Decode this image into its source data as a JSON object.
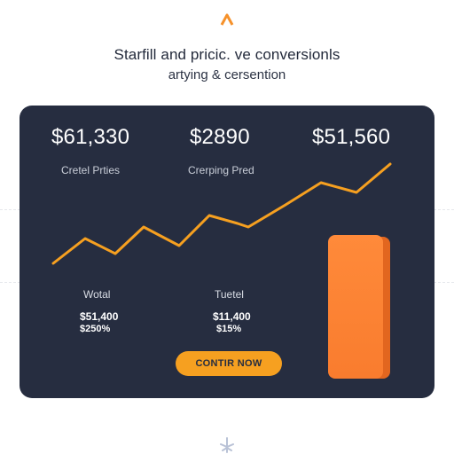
{
  "header": {
    "headline": "Starfill and pricic. ve conversionls",
    "subline": "artying & cersention"
  },
  "card": {
    "stats": [
      {
        "value": "$61,330",
        "label": "Cretel Prties"
      },
      {
        "value": "$2890",
        "label": "Crerping Pred"
      },
      {
        "value": "$51,560"
      }
    ],
    "bottom": [
      {
        "label": "Wotal",
        "value1": "$51,400",
        "value2": "$250%"
      },
      {
        "label": "Tuetel",
        "value1": "$11,400",
        "value2": "$15%"
      }
    ],
    "cta_label": "CONTIR NOW"
  },
  "colors": {
    "card_background": "#262d40",
    "accent_line": "#f6a020",
    "accent_bar": "#f97c2e",
    "button": "#f6a020"
  },
  "icons": [
    "logo-caret-icon",
    "bottom-ornament-icon"
  ]
}
